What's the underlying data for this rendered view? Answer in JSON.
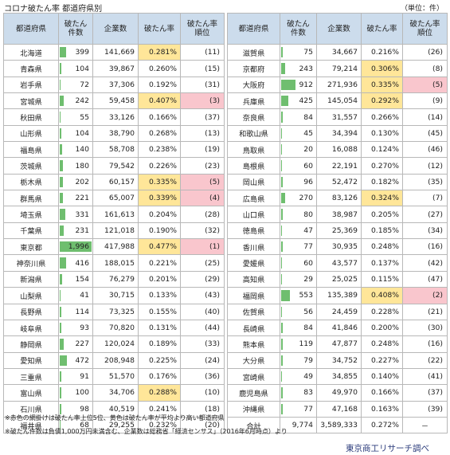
{
  "title": "コロナ破たん率  都道府県別",
  "unit": "（単位：件）",
  "headers": {
    "pref": "都道府県",
    "count_l1": "破たん",
    "count_l2": "件数",
    "companies": "企業数",
    "rate": "破たん率",
    "rank_l1": "破たん率",
    "rank_l2": "順位"
  },
  "colors": {
    "header_bg": "#ccdcec",
    "rate_highlight": "#ffe699",
    "rank_highlight": "#f9c6cd",
    "bar": "#6fbe6f"
  },
  "max_count": 1996,
  "left": [
    {
      "pref": "北海道",
      "count": "399",
      "companies": "141,669",
      "rate": "0.281%",
      "rank": "(11)",
      "hi_rate": true,
      "hi_rank": false
    },
    {
      "pref": "青森県",
      "count": "104",
      "companies": "39,867",
      "rate": "0.260%",
      "rank": "(15)",
      "hi_rate": false,
      "hi_rank": false
    },
    {
      "pref": "岩手県",
      "count": "72",
      "companies": "37,306",
      "rate": "0.192%",
      "rank": "(31)",
      "hi_rate": false,
      "hi_rank": false
    },
    {
      "pref": "宮城県",
      "count": "242",
      "companies": "59,458",
      "rate": "0.407%",
      "rank": "(3)",
      "hi_rate": true,
      "hi_rank": true
    },
    {
      "pref": "秋田県",
      "count": "55",
      "companies": "33,126",
      "rate": "0.166%",
      "rank": "(37)",
      "hi_rate": false,
      "hi_rank": false
    },
    {
      "pref": "山形県",
      "count": "104",
      "companies": "38,790",
      "rate": "0.268%",
      "rank": "(13)",
      "hi_rate": false,
      "hi_rank": false
    },
    {
      "pref": "福島県",
      "count": "140",
      "companies": "58,708",
      "rate": "0.238%",
      "rank": "(19)",
      "hi_rate": false,
      "hi_rank": false
    },
    {
      "pref": "茨城県",
      "count": "180",
      "companies": "79,542",
      "rate": "0.226%",
      "rank": "(23)",
      "hi_rate": false,
      "hi_rank": false
    },
    {
      "pref": "栃木県",
      "count": "202",
      "companies": "60,157",
      "rate": "0.335%",
      "rank": "(5)",
      "hi_rate": true,
      "hi_rank": true
    },
    {
      "pref": "群馬県",
      "count": "221",
      "companies": "65,007",
      "rate": "0.339%",
      "rank": "(4)",
      "hi_rate": true,
      "hi_rank": true
    },
    {
      "pref": "埼玉県",
      "count": "331",
      "companies": "161,613",
      "rate": "0.204%",
      "rank": "(28)",
      "hi_rate": false,
      "hi_rank": false
    },
    {
      "pref": "千葉県",
      "count": "231",
      "companies": "121,018",
      "rate": "0.190%",
      "rank": "(32)",
      "hi_rate": false,
      "hi_rank": false
    },
    {
      "pref": "東京都",
      "count": "1,996",
      "companies": "417,988",
      "rate": "0.477%",
      "rank": "(1)",
      "hi_rate": true,
      "hi_rank": true
    },
    {
      "pref": "神奈川県",
      "count": "416",
      "companies": "188,015",
      "rate": "0.221%",
      "rank": "(25)",
      "hi_rate": false,
      "hi_rank": false
    },
    {
      "pref": "新潟県",
      "count": "154",
      "companies": "76,279",
      "rate": "0.201%",
      "rank": "(29)",
      "hi_rate": false,
      "hi_rank": false
    },
    {
      "pref": "山梨県",
      "count": "41",
      "companies": "30,715",
      "rate": "0.133%",
      "rank": "(43)",
      "hi_rate": false,
      "hi_rank": false
    },
    {
      "pref": "長野県",
      "count": "114",
      "companies": "73,325",
      "rate": "0.155%",
      "rank": "(40)",
      "hi_rate": false,
      "hi_rank": false
    },
    {
      "pref": "岐阜県",
      "count": "93",
      "companies": "70,820",
      "rate": "0.131%",
      "rank": "(44)",
      "hi_rate": false,
      "hi_rank": false
    },
    {
      "pref": "静岡県",
      "count": "227",
      "companies": "120,024",
      "rate": "0.189%",
      "rank": "(33)",
      "hi_rate": false,
      "hi_rank": false
    },
    {
      "pref": "愛知県",
      "count": "472",
      "companies": "208,948",
      "rate": "0.225%",
      "rank": "(24)",
      "hi_rate": false,
      "hi_rank": false
    },
    {
      "pref": "三重県",
      "count": "91",
      "companies": "51,570",
      "rate": "0.176%",
      "rank": "(36)",
      "hi_rate": false,
      "hi_rank": false
    },
    {
      "pref": "富山県",
      "count": "100",
      "companies": "34,706",
      "rate": "0.288%",
      "rank": "(10)",
      "hi_rate": true,
      "hi_rank": false
    },
    {
      "pref": "石川県",
      "count": "98",
      "companies": "40,519",
      "rate": "0.241%",
      "rank": "(18)",
      "hi_rate": false,
      "hi_rank": false
    },
    {
      "pref": "福井県",
      "count": "68",
      "companies": "29,255",
      "rate": "0.232%",
      "rank": "(20)",
      "hi_rate": false,
      "hi_rank": false
    }
  ],
  "right": [
    {
      "pref": "滋賀県",
      "count": "75",
      "companies": "34,667",
      "rate": "0.216%",
      "rank": "(26)",
      "hi_rate": false,
      "hi_rank": false
    },
    {
      "pref": "京都府",
      "count": "243",
      "companies": "79,214",
      "rate": "0.306%",
      "rank": "(8)",
      "hi_rate": true,
      "hi_rank": false
    },
    {
      "pref": "大阪府",
      "count": "912",
      "companies": "271,936",
      "rate": "0.335%",
      "rank": "(5)",
      "hi_rate": true,
      "hi_rank": true
    },
    {
      "pref": "兵庫県",
      "count": "425",
      "companies": "145,054",
      "rate": "0.292%",
      "rank": "(9)",
      "hi_rate": true,
      "hi_rank": false
    },
    {
      "pref": "奈良県",
      "count": "84",
      "companies": "31,557",
      "rate": "0.266%",
      "rank": "(14)",
      "hi_rate": false,
      "hi_rank": false
    },
    {
      "pref": "和歌山県",
      "count": "45",
      "companies": "34,394",
      "rate": "0.130%",
      "rank": "(45)",
      "hi_rate": false,
      "hi_rank": false
    },
    {
      "pref": "鳥取県",
      "count": "20",
      "companies": "16,088",
      "rate": "0.124%",
      "rank": "(46)",
      "hi_rate": false,
      "hi_rank": false
    },
    {
      "pref": "島根県",
      "count": "60",
      "companies": "22,191",
      "rate": "0.270%",
      "rank": "(12)",
      "hi_rate": false,
      "hi_rank": false
    },
    {
      "pref": "岡山県",
      "count": "96",
      "companies": "52,472",
      "rate": "0.182%",
      "rank": "(35)",
      "hi_rate": false,
      "hi_rank": false
    },
    {
      "pref": "広島県",
      "count": "270",
      "companies": "83,126",
      "rate": "0.324%",
      "rank": "(7)",
      "hi_rate": true,
      "hi_rank": false
    },
    {
      "pref": "山口県",
      "count": "80",
      "companies": "38,987",
      "rate": "0.205%",
      "rank": "(27)",
      "hi_rate": false,
      "hi_rank": false
    },
    {
      "pref": "徳島県",
      "count": "47",
      "companies": "25,369",
      "rate": "0.185%",
      "rank": "(34)",
      "hi_rate": false,
      "hi_rank": false
    },
    {
      "pref": "香川県",
      "count": "77",
      "companies": "30,935",
      "rate": "0.248%",
      "rank": "(16)",
      "hi_rate": false,
      "hi_rank": false
    },
    {
      "pref": "愛媛県",
      "count": "60",
      "companies": "43,577",
      "rate": "0.137%",
      "rank": "(42)",
      "hi_rate": false,
      "hi_rank": false
    },
    {
      "pref": "高知県",
      "count": "29",
      "companies": "25,025",
      "rate": "0.115%",
      "rank": "(47)",
      "hi_rate": false,
      "hi_rank": false
    },
    {
      "pref": "福岡県",
      "count": "553",
      "companies": "135,389",
      "rate": "0.408%",
      "rank": "(2)",
      "hi_rate": true,
      "hi_rank": true
    },
    {
      "pref": "佐賀県",
      "count": "56",
      "companies": "24,459",
      "rate": "0.228%",
      "rank": "(21)",
      "hi_rate": false,
      "hi_rank": false
    },
    {
      "pref": "長崎県",
      "count": "84",
      "companies": "41,846",
      "rate": "0.200%",
      "rank": "(30)",
      "hi_rate": false,
      "hi_rank": false
    },
    {
      "pref": "熊本県",
      "count": "119",
      "companies": "47,877",
      "rate": "0.248%",
      "rank": "(16)",
      "hi_rate": false,
      "hi_rank": false
    },
    {
      "pref": "大分県",
      "count": "79",
      "companies": "34,752",
      "rate": "0.227%",
      "rank": "(22)",
      "hi_rate": false,
      "hi_rank": false
    },
    {
      "pref": "宮崎県",
      "count": "49",
      "companies": "34,855",
      "rate": "0.140%",
      "rank": "(41)",
      "hi_rate": false,
      "hi_rank": false
    },
    {
      "pref": "鹿児島県",
      "count": "83",
      "companies": "49,970",
      "rate": "0.166%",
      "rank": "(37)",
      "hi_rate": false,
      "hi_rank": false
    },
    {
      "pref": "沖縄県",
      "count": "77",
      "companies": "47,168",
      "rate": "0.163%",
      "rank": "(39)",
      "hi_rate": false,
      "hi_rank": false
    }
  ],
  "total": {
    "pref": "合計",
    "count": "9,774",
    "companies": "3,589,333",
    "rate": "0.272%",
    "rank": "－"
  },
  "notes": [
    "※赤色の網掛けは破たん率上位5位、黄色は破たん率が平均より高い都道府県",
    "※破たん件数は負債1,000万円未満含む、企業数は総務省「経済センサス」（2016年6月時点）より"
  ],
  "credit": "東京商工リサーチ調べ"
}
